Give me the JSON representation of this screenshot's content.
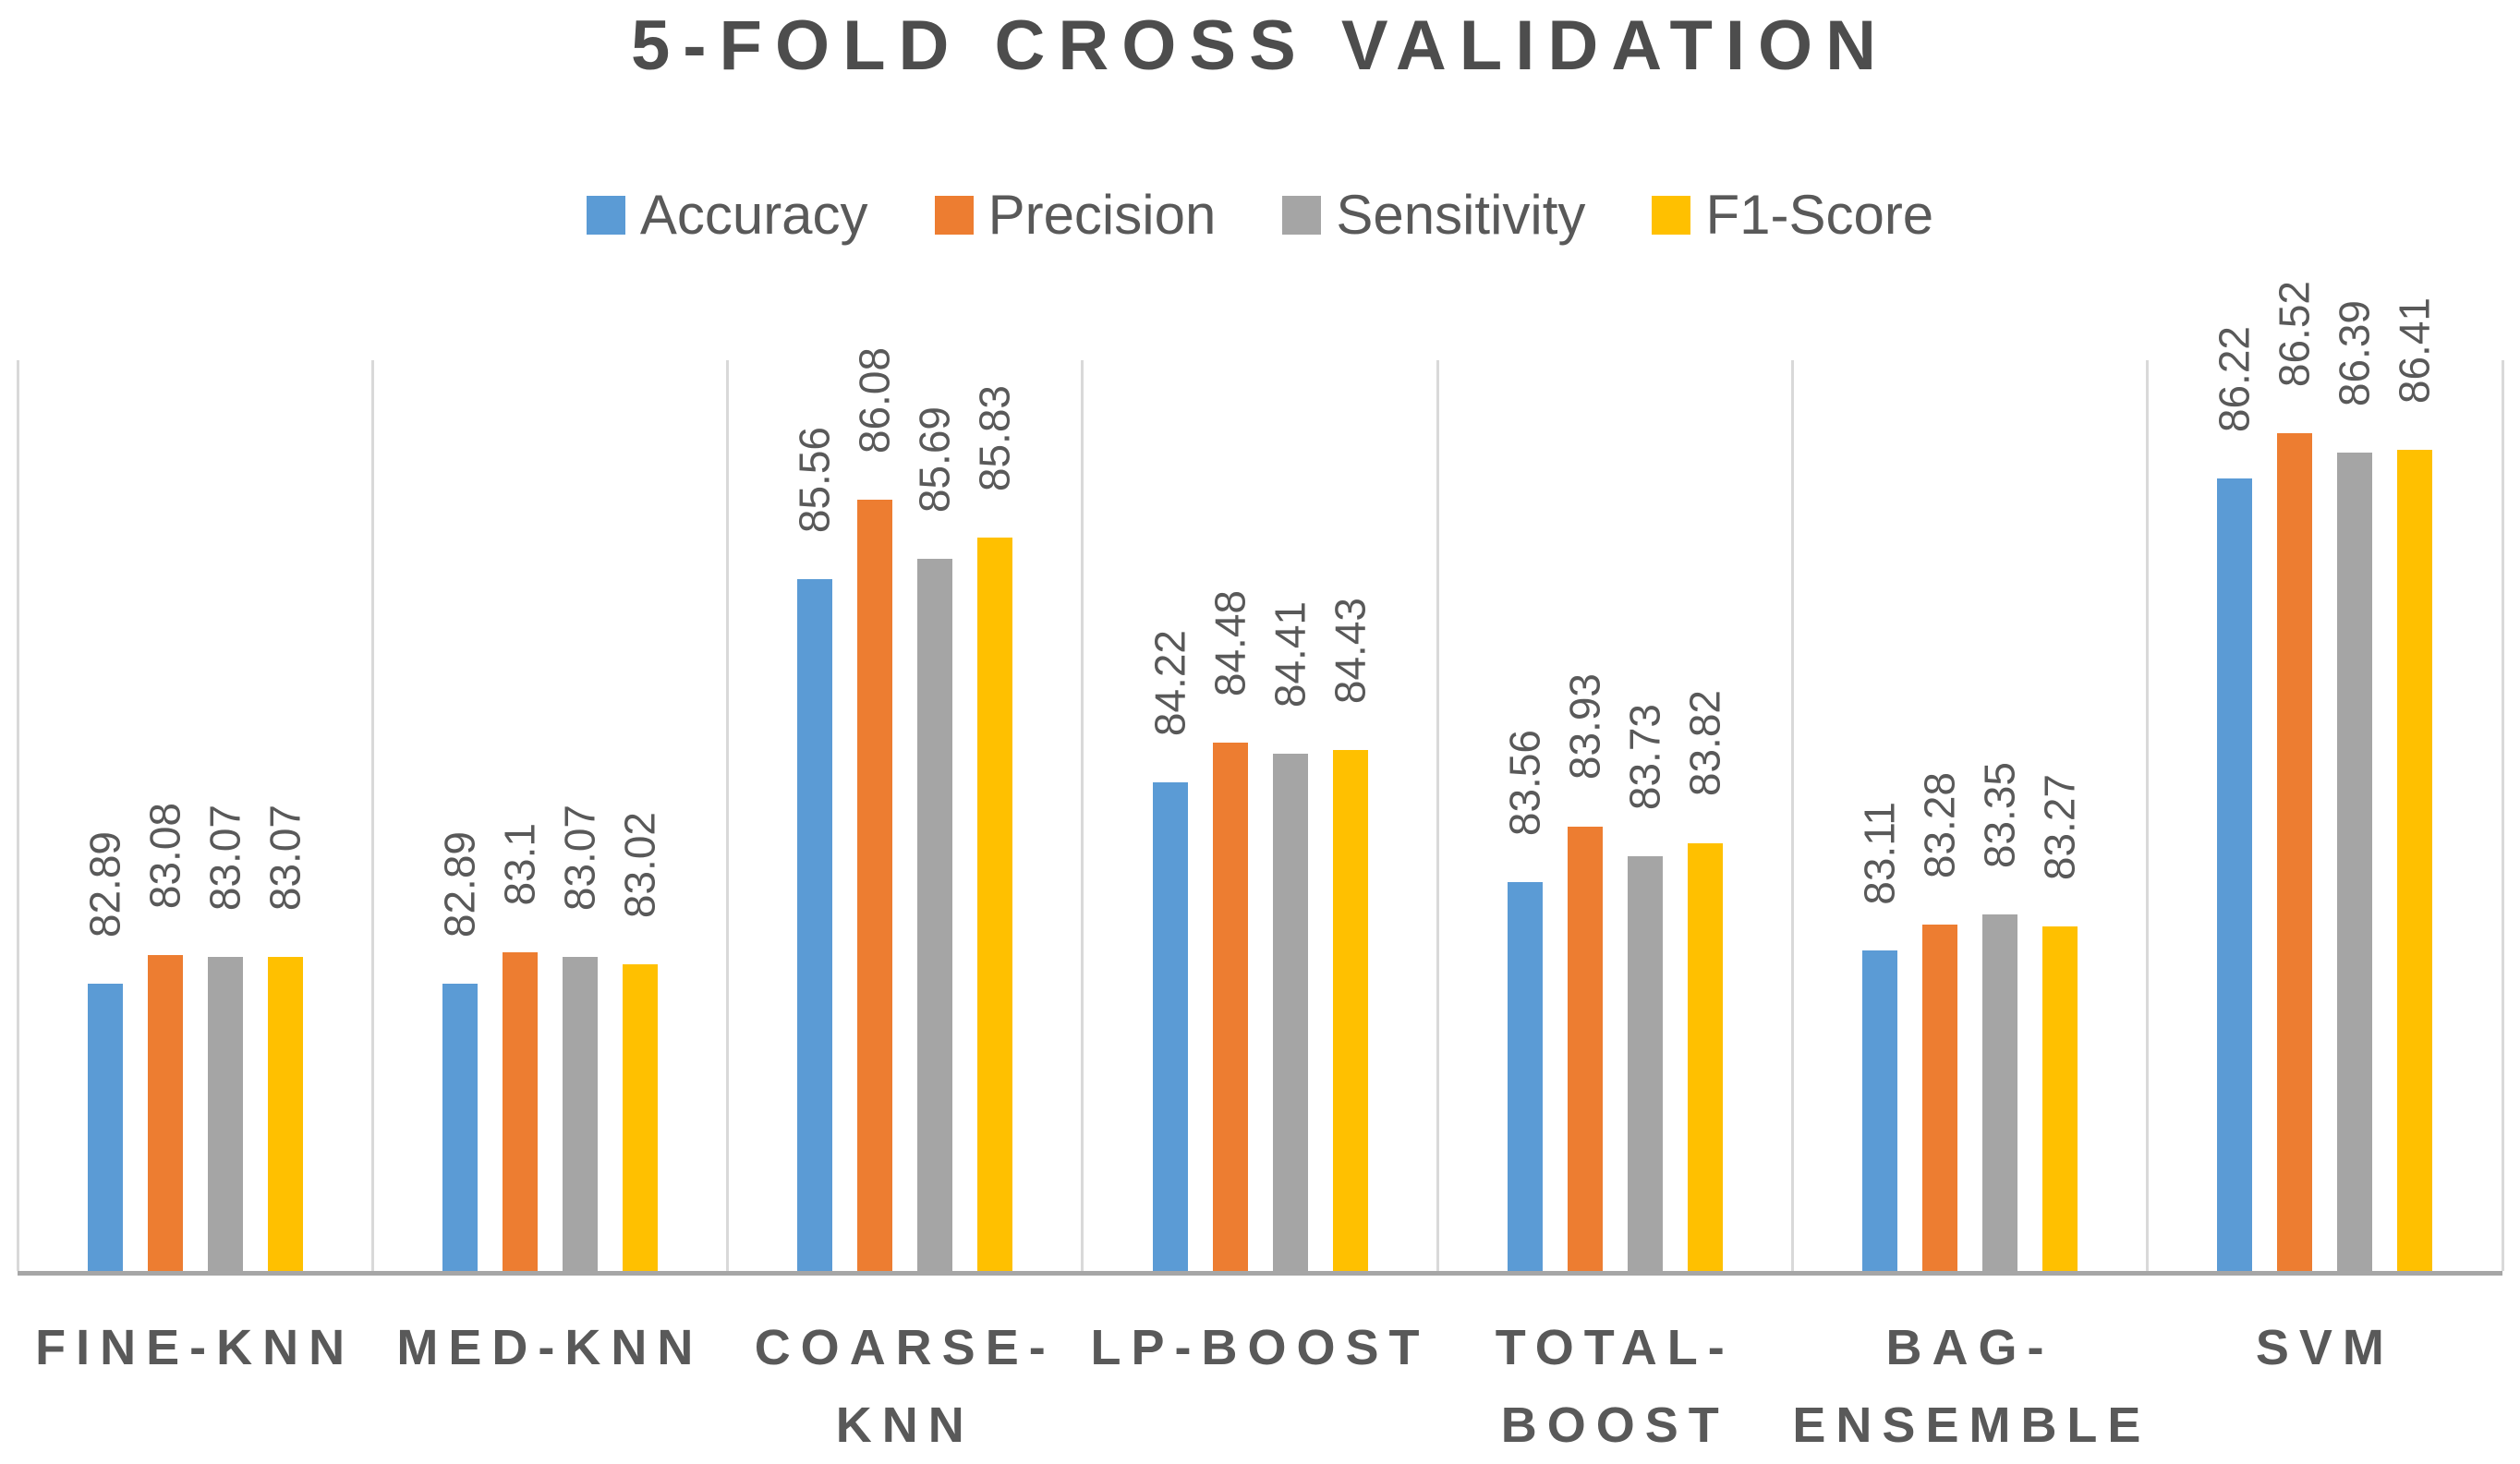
{
  "chart_data": {
    "type": "bar",
    "title": "5-FOLD CROSS VALIDATION",
    "categories": [
      "FINE-KNN",
      "MED-KNN",
      "COARSE-KNN",
      "LP-BOOST",
      "TOTAL-BOOST",
      "BAG-ENSEMBLE",
      "SVM"
    ],
    "categories_display": [
      "FINE-KNN",
      "MED-KNN",
      "COARSE-\nKNN",
      "LP-BOOST",
      "TOTAL-\nBOOST",
      "BAG-\nENSEMBLE",
      "SVM"
    ],
    "series": [
      {
        "name": "Accuracy",
        "color": "#5b9bd5",
        "values": [
          82.89,
          82.89,
          85.56,
          84.22,
          83.56,
          83.11,
          86.22
        ]
      },
      {
        "name": "Precision",
        "color": "#ed7d31",
        "values": [
          83.08,
          83.1,
          86.08,
          84.48,
          83.93,
          83.28,
          86.52
        ]
      },
      {
        "name": "Sensitivity",
        "color": "#a5a5a5",
        "values": [
          83.07,
          83.07,
          85.69,
          84.41,
          83.73,
          83.35,
          86.39
        ]
      },
      {
        "name": "F1-Score",
        "color": "#ffc000",
        "values": [
          83.07,
          83.02,
          85.83,
          84.43,
          83.82,
          83.27,
          86.41
        ]
      }
    ],
    "xlabel": "",
    "ylabel": "",
    "ylim": [
      81,
      87
    ],
    "y_axis_labels_visible": false,
    "data_labels": "rotated-90-above-bars",
    "legend_position": "top",
    "grid": "vertical-category-separators",
    "colors": {
      "title_text": "#4d4d4d",
      "label_text": "#595959",
      "axis_line": "#a6a6a6",
      "gridline": "#d9d9d9",
      "background": "#ffffff"
    }
  }
}
